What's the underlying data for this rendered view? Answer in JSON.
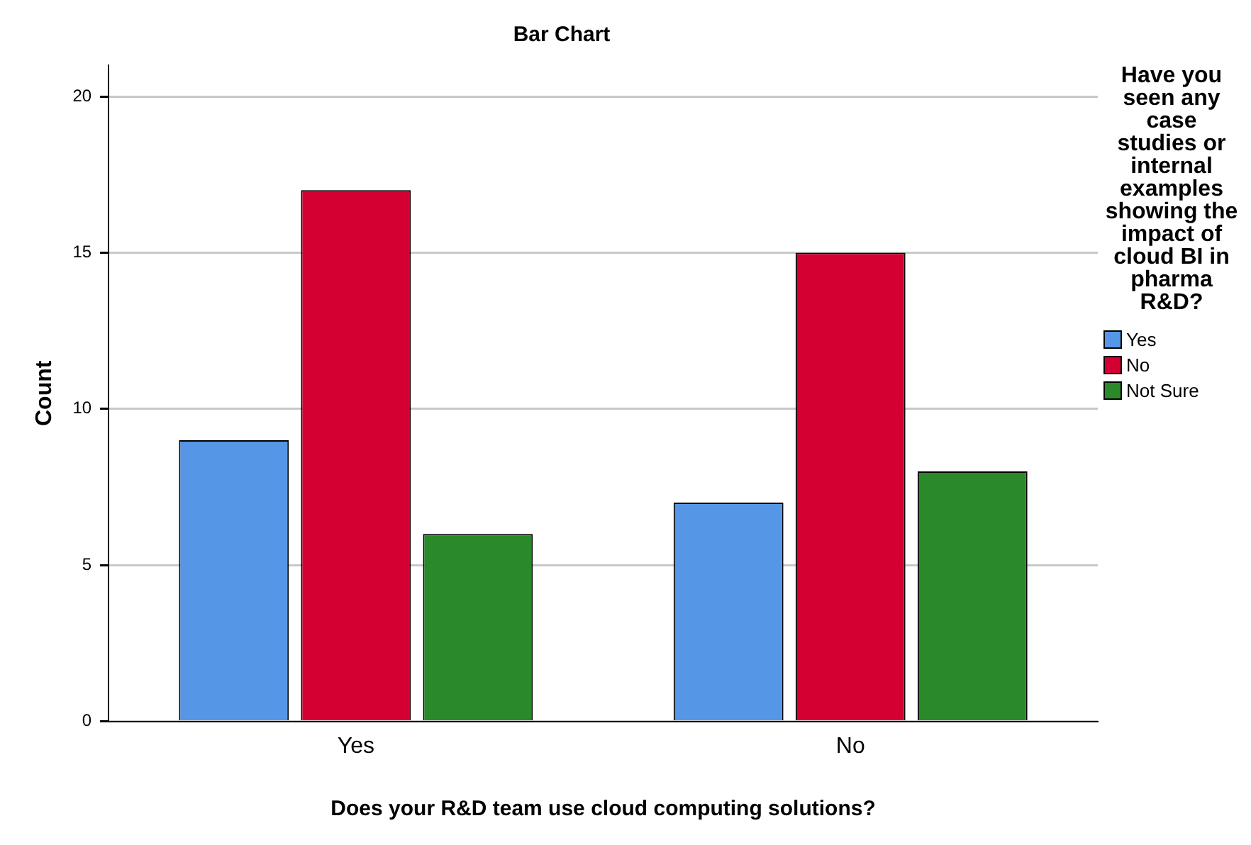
{
  "chart_data": {
    "type": "bar",
    "title": "Bar Chart",
    "xlabel": "Does your R&D team use cloud computing solutions?",
    "ylabel": "Count",
    "legend_title": "Have you seen any case studies or internal examples showing the impact of cloud BI in pharma R&D?",
    "categories": [
      "Yes",
      "No"
    ],
    "series": [
      {
        "name": "Yes",
        "color": "#5596e6",
        "values": [
          9,
          7
        ]
      },
      {
        "name": "No",
        "color": "#d50032",
        "values": [
          17,
          15
        ]
      },
      {
        "name": "Not Sure",
        "color": "#2a8a2a",
        "values": [
          6,
          8
        ]
      }
    ],
    "ylim": [
      0,
      21
    ],
    "yticks": [
      0,
      5,
      10,
      15,
      20
    ],
    "grid": "y",
    "legend": "right"
  }
}
